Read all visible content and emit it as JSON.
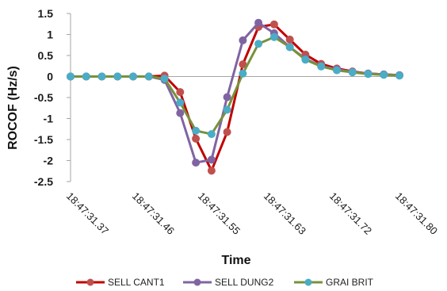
{
  "chart_data": {
    "type": "line",
    "xlabel": "Time",
    "ylabel": "ROCOF (Hz/s)",
    "ylim": [
      -2.5,
      1.5
    ],
    "y_ticks": [
      "1.5",
      "1",
      "0.5",
      "0",
      "-0.5",
      "-1",
      "-1.5",
      "-2",
      "-2.5"
    ],
    "x_tick_labels": [
      "18:47:31.37",
      "18:47:31.46",
      "18:47:31.55",
      "18:47:31.63",
      "18:47:31.72",
      "18:47:31.80"
    ],
    "grid": false,
    "legend_position": "bottom",
    "x": [
      0,
      1,
      2,
      3,
      4,
      5,
      6,
      7,
      8,
      9,
      10,
      11,
      12,
      13,
      14,
      15,
      16,
      17,
      18,
      19,
      20,
      21
    ],
    "series": [
      {
        "name": "SELL CANT1",
        "color": "#c00000",
        "marker_color": "#c0504d",
        "values": [
          0,
          0,
          0,
          0,
          0,
          0,
          0.02,
          -0.37,
          -1.48,
          -2.24,
          -1.32,
          0.29,
          1.18,
          1.24,
          0.88,
          0.52,
          0.3,
          0.19,
          0.12,
          0.07,
          0.05,
          0.03
        ]
      },
      {
        "name": "SELL DUNG2",
        "color": "#8064a2",
        "marker_color": "#8064a2",
        "values": [
          0,
          0,
          0,
          0,
          0,
          0,
          -0.08,
          -0.87,
          -2.05,
          -1.98,
          -0.49,
          0.86,
          1.28,
          1.03,
          0.7,
          0.42,
          0.25,
          0.17,
          0.11,
          0.07,
          0.05,
          0.03
        ]
      },
      {
        "name": "GRAI BRIT",
        "color": "#76923c",
        "marker_color": "#4bacc6",
        "values": [
          0,
          0,
          0,
          0,
          0,
          0,
          -0.05,
          -0.62,
          -1.29,
          -1.37,
          -0.79,
          0.07,
          0.78,
          0.94,
          0.7,
          0.4,
          0.24,
          0.15,
          0.1,
          0.06,
          0.04,
          0.02
        ]
      }
    ]
  }
}
